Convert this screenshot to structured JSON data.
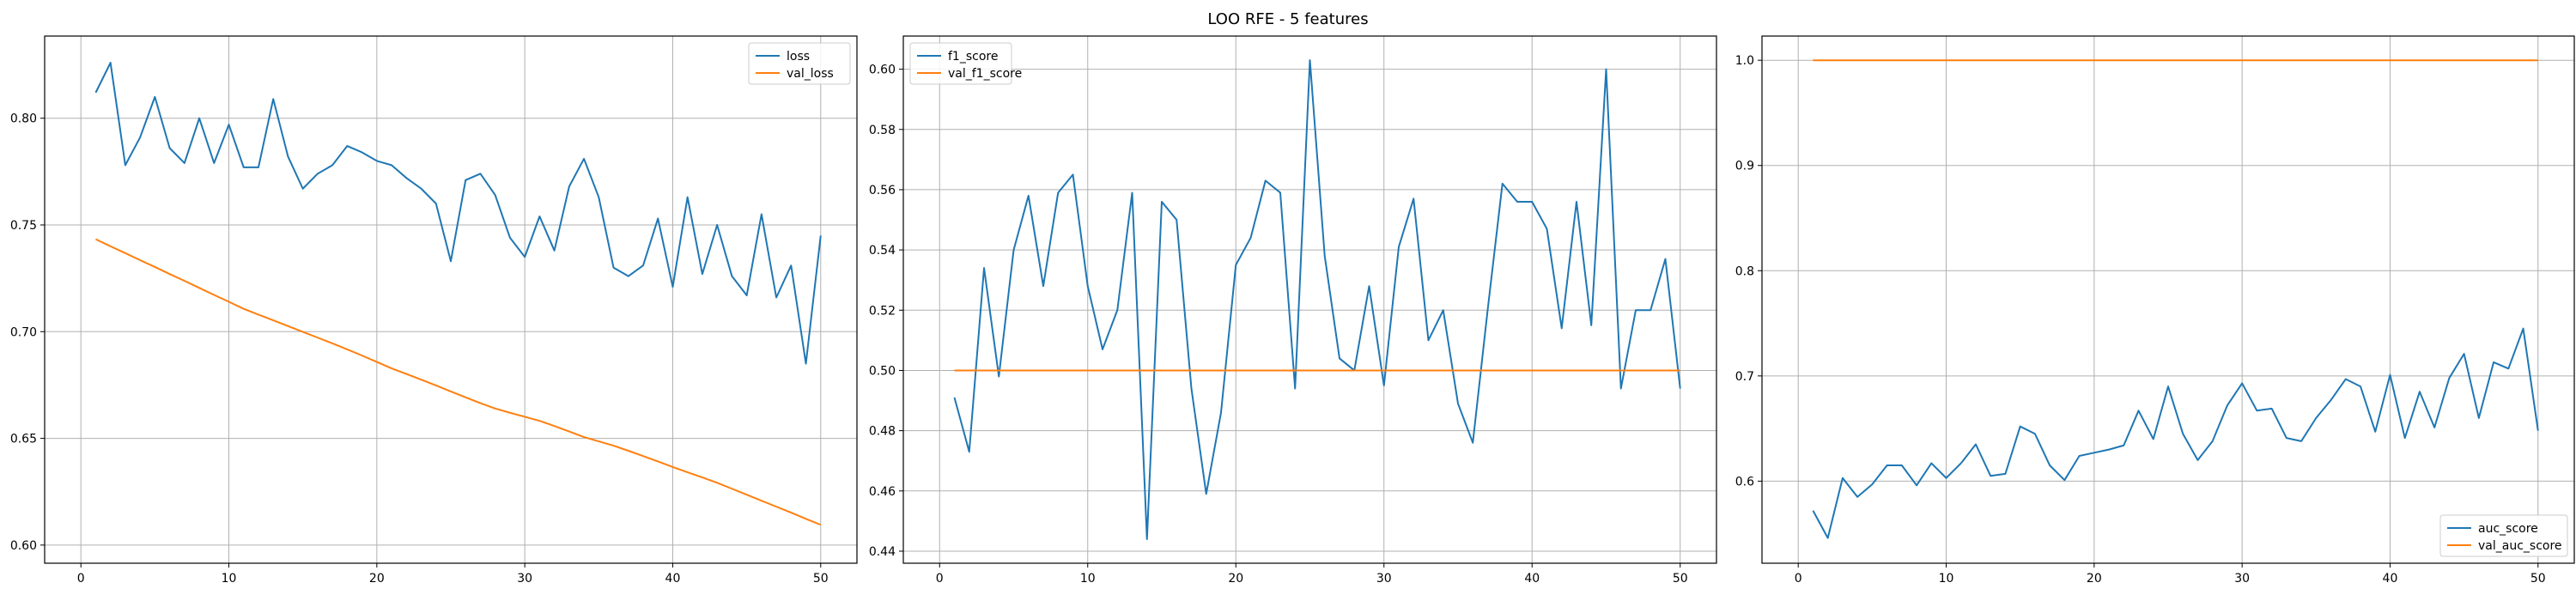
{
  "figure": {
    "title": "LOO RFE - 5 features"
  },
  "colors": {
    "series_1": "#1f77b4",
    "series_2": "#ff7f0e",
    "grid": "#b0b0b0",
    "axes": "#000000"
  },
  "chart_data": [
    {
      "type": "line",
      "title": "",
      "xlabel": "",
      "ylabel": "",
      "xlim": [
        -2.45,
        52.45
      ],
      "ylim": [
        0.5915,
        0.8385
      ],
      "xticks": [
        0,
        10,
        20,
        30,
        40,
        50
      ],
      "xtick_labels": [
        "0",
        "10",
        "20",
        "30",
        "40",
        "50"
      ],
      "yticks": [
        0.6,
        0.65,
        0.7,
        0.75,
        0.8
      ],
      "ytick_labels": [
        "0.60",
        "0.65",
        "0.70",
        "0.75",
        "0.80"
      ],
      "grid": true,
      "legend_position": "top-right",
      "x": [
        1,
        2,
        3,
        4,
        5,
        6,
        7,
        8,
        9,
        10,
        11,
        12,
        13,
        14,
        15,
        16,
        17,
        18,
        19,
        20,
        21,
        22,
        23,
        24,
        25,
        26,
        27,
        28,
        29,
        30,
        31,
        32,
        33,
        34,
        35,
        36,
        37,
        38,
        39,
        40,
        41,
        42,
        43,
        44,
        45,
        46,
        47,
        48,
        49,
        50
      ],
      "series": [
        {
          "name": "loss",
          "color": "#1f77b4",
          "values": [
            0.812,
            0.826,
            0.778,
            0.791,
            0.81,
            0.786,
            0.779,
            0.8,
            0.779,
            0.797,
            0.777,
            0.777,
            0.809,
            0.782,
            0.767,
            0.774,
            0.778,
            0.787,
            0.784,
            0.78,
            0.778,
            0.772,
            0.767,
            0.76,
            0.733,
            0.771,
            0.774,
            0.764,
            0.744,
            0.735,
            0.754,
            0.738,
            0.768,
            0.781,
            0.763,
            0.73,
            0.726,
            0.731,
            0.753,
            0.721,
            0.763,
            0.727,
            0.75,
            0.726,
            0.717,
            0.755,
            0.716,
            0.731,
            0.685,
            0.745
          ]
        },
        {
          "name": "val_loss",
          "color": "#ff7f0e",
          "values": [
            0.7433,
            0.74,
            0.7368,
            0.7335,
            0.7303,
            0.727,
            0.7238,
            0.7205,
            0.7172,
            0.714,
            0.7107,
            0.708,
            0.7053,
            0.7026,
            0.6999,
            0.6972,
            0.6945,
            0.6917,
            0.6888,
            0.6858,
            0.6828,
            0.6802,
            0.6775,
            0.6748,
            0.672,
            0.6692,
            0.6665,
            0.664,
            0.662,
            0.6601,
            0.6582,
            0.6558,
            0.6532,
            0.6506,
            0.6486,
            0.6466,
            0.6442,
            0.6417,
            0.6392,
            0.6366,
            0.6341,
            0.6317,
            0.6292,
            0.6264,
            0.6236,
            0.6208,
            0.618,
            0.6152,
            0.6123,
            0.6095
          ]
        }
      ]
    },
    {
      "type": "line",
      "title": "",
      "xlabel": "",
      "ylabel": "",
      "xlim": [
        -2.45,
        52.45
      ],
      "ylim": [
        0.436,
        0.611
      ],
      "xticks": [
        0,
        10,
        20,
        30,
        40,
        50
      ],
      "xtick_labels": [
        "0",
        "10",
        "20",
        "30",
        "40",
        "50"
      ],
      "yticks": [
        0.44,
        0.46,
        0.48,
        0.5,
        0.52,
        0.54,
        0.56,
        0.58,
        0.6
      ],
      "ytick_labels": [
        "0.44",
        "0.46",
        "0.48",
        "0.50",
        "0.52",
        "0.54",
        "0.56",
        "0.58",
        "0.60"
      ],
      "grid": true,
      "legend_position": "top-left",
      "x": [
        1,
        2,
        3,
        4,
        5,
        6,
        7,
        8,
        9,
        10,
        11,
        12,
        13,
        14,
        15,
        16,
        17,
        18,
        19,
        20,
        21,
        22,
        23,
        24,
        25,
        26,
        27,
        28,
        29,
        30,
        31,
        32,
        33,
        34,
        35,
        36,
        37,
        38,
        39,
        40,
        41,
        42,
        43,
        44,
        45,
        46,
        47,
        48,
        49,
        50
      ],
      "series": [
        {
          "name": "f1_score",
          "color": "#1f77b4",
          "values": [
            0.491,
            0.473,
            0.534,
            0.498,
            0.54,
            0.558,
            0.528,
            0.559,
            0.565,
            0.528,
            0.507,
            0.52,
            0.559,
            0.444,
            0.556,
            0.55,
            0.494,
            0.459,
            0.486,
            0.535,
            0.544,
            0.563,
            0.559,
            0.494,
            0.603,
            0.538,
            0.504,
            0.5,
            0.528,
            0.495,
            0.541,
            0.557,
            0.51,
            0.52,
            0.489,
            0.476,
            0.52,
            0.562,
            0.556,
            0.556,
            0.547,
            0.514,
            0.556,
            0.515,
            0.6,
            0.494,
            0.52,
            0.52,
            0.537,
            0.494
          ]
        },
        {
          "name": "val_f1_score",
          "color": "#ff7f0e",
          "values": [
            0.5,
            0.5,
            0.5,
            0.5,
            0.5,
            0.5,
            0.5,
            0.5,
            0.5,
            0.5,
            0.5,
            0.5,
            0.5,
            0.5,
            0.5,
            0.5,
            0.5,
            0.5,
            0.5,
            0.5,
            0.5,
            0.5,
            0.5,
            0.5,
            0.5,
            0.5,
            0.5,
            0.5,
            0.5,
            0.5,
            0.5,
            0.5,
            0.5,
            0.5,
            0.5,
            0.5,
            0.5,
            0.5,
            0.5,
            0.5,
            0.5,
            0.5,
            0.5,
            0.5,
            0.5,
            0.5,
            0.5,
            0.5,
            0.5,
            0.5
          ]
        }
      ]
    },
    {
      "type": "line",
      "title": "",
      "xlabel": "",
      "ylabel": "",
      "xlim": [
        -2.45,
        52.45
      ],
      "ylim": [
        0.522,
        1.023
      ],
      "xticks": [
        0,
        10,
        20,
        30,
        40,
        50
      ],
      "xtick_labels": [
        "0",
        "10",
        "20",
        "30",
        "40",
        "50"
      ],
      "yticks": [
        0.6,
        0.7,
        0.8,
        0.9,
        1.0
      ],
      "ytick_labels": [
        "0.6",
        "0.7",
        "0.8",
        "0.9",
        "1.0"
      ],
      "grid": true,
      "legend_position": "bottom-right",
      "x": [
        1,
        2,
        3,
        4,
        5,
        6,
        7,
        8,
        9,
        10,
        11,
        12,
        13,
        14,
        15,
        16,
        17,
        18,
        19,
        20,
        21,
        22,
        23,
        24,
        25,
        26,
        27,
        28,
        29,
        30,
        31,
        32,
        33,
        34,
        35,
        36,
        37,
        38,
        39,
        40,
        41,
        42,
        43,
        44,
        45,
        46,
        47,
        48,
        49,
        50
      ],
      "series": [
        {
          "name": "auc_score",
          "color": "#1f77b4",
          "values": [
            0.572,
            0.546,
            0.603,
            0.585,
            0.597,
            0.615,
            0.615,
            0.596,
            0.617,
            0.603,
            0.617,
            0.635,
            0.605,
            0.607,
            0.652,
            0.645,
            0.615,
            0.601,
            0.624,
            0.627,
            0.63,
            0.634,
            0.667,
            0.64,
            0.69,
            0.645,
            0.62,
            0.638,
            0.672,
            0.693,
            0.667,
            0.669,
            0.641,
            0.638,
            0.66,
            0.677,
            0.697,
            0.69,
            0.647,
            0.701,
            0.641,
            0.685,
            0.651,
            0.698,
            0.721,
            0.66,
            0.713,
            0.707,
            0.745,
            0.648
          ]
        },
        {
          "name": "val_auc_score",
          "color": "#ff7f0e",
          "values": [
            1.0,
            1.0,
            1.0,
            1.0,
            1.0,
            1.0,
            1.0,
            1.0,
            1.0,
            1.0,
            1.0,
            1.0,
            1.0,
            1.0,
            1.0,
            1.0,
            1.0,
            1.0,
            1.0,
            1.0,
            1.0,
            1.0,
            1.0,
            1.0,
            1.0,
            1.0,
            1.0,
            1.0,
            1.0,
            1.0,
            1.0,
            1.0,
            1.0,
            1.0,
            1.0,
            1.0,
            1.0,
            1.0,
            1.0,
            1.0,
            1.0,
            1.0,
            1.0,
            1.0,
            1.0,
            1.0,
            1.0,
            1.0,
            1.0,
            1.0
          ]
        }
      ]
    }
  ]
}
